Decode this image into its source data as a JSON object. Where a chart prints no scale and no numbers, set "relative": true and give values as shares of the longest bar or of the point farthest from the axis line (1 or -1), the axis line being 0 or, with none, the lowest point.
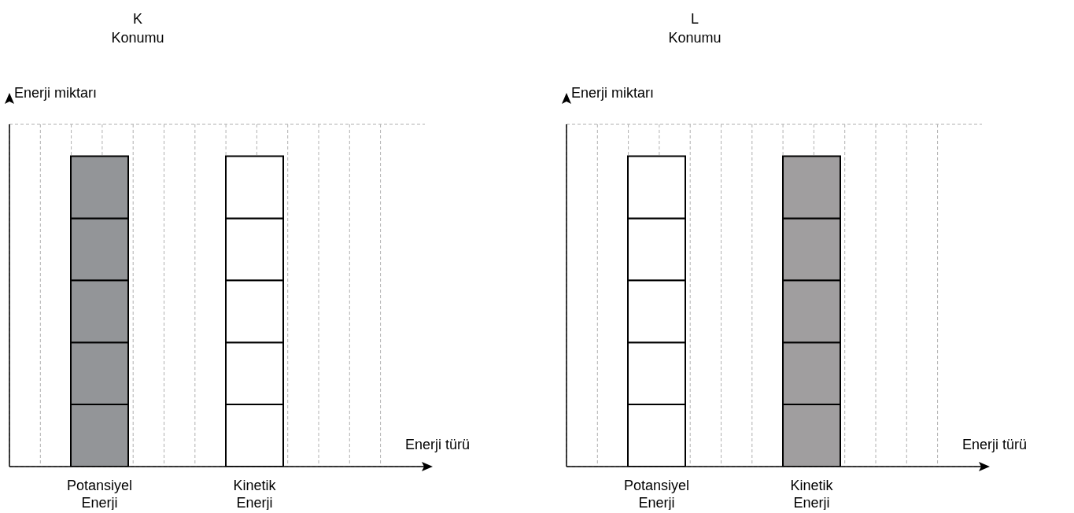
{
  "chart_data": [
    {
      "type": "bar",
      "title": "K\nKonumu",
      "xlabel": "Enerji türü",
      "ylabel": "Enerji miktarı",
      "categories": [
        "Potansiyel\nEnerji",
        "Kinetik\nEnerji"
      ],
      "stacked": true,
      "relative": true,
      "grid": true,
      "legend": false,
      "series": [
        {
          "colors": [
            "#939598",
            "#ffffff"
          ],
          "values": [
            0.2,
            0.2
          ]
        },
        {
          "colors": [
            "#939598",
            "#ffffff"
          ],
          "values": [
            0.2,
            0.2
          ]
        },
        {
          "colors": [
            "#939598",
            "#ffffff"
          ],
          "values": [
            0.2,
            0.2
          ]
        },
        {
          "colors": [
            "#939598",
            "#ffffff"
          ],
          "values": [
            0.2,
            0.2
          ]
        },
        {
          "colors": [
            "#939598",
            "#ffffff"
          ],
          "values": [
            0.2,
            0.2
          ]
        }
      ]
    },
    {
      "type": "bar",
      "title": "L\nKonumu",
      "xlabel": "Enerji türü",
      "ylabel": "Enerji miktarı",
      "categories": [
        "Potansiyel\nEnerji",
        "Kinetik\nEnerji"
      ],
      "stacked": true,
      "relative": true,
      "grid": true,
      "legend": false,
      "series": [
        {
          "colors": [
            "#ffffff",
            "#a09e9f"
          ],
          "values": [
            0.2,
            0.2
          ]
        },
        {
          "colors": [
            "#ffffff",
            "#a09e9f"
          ],
          "values": [
            0.2,
            0.2
          ]
        },
        {
          "colors": [
            "#ffffff",
            "#a09e9f"
          ],
          "values": [
            0.2,
            0.2
          ]
        },
        {
          "colors": [
            "#ffffff",
            "#a09e9f"
          ],
          "values": [
            0.2,
            0.2
          ]
        },
        {
          "colors": [
            "#ffffff",
            "#a09e9f"
          ],
          "values": [
            0.2,
            0.2
          ]
        }
      ]
    }
  ]
}
